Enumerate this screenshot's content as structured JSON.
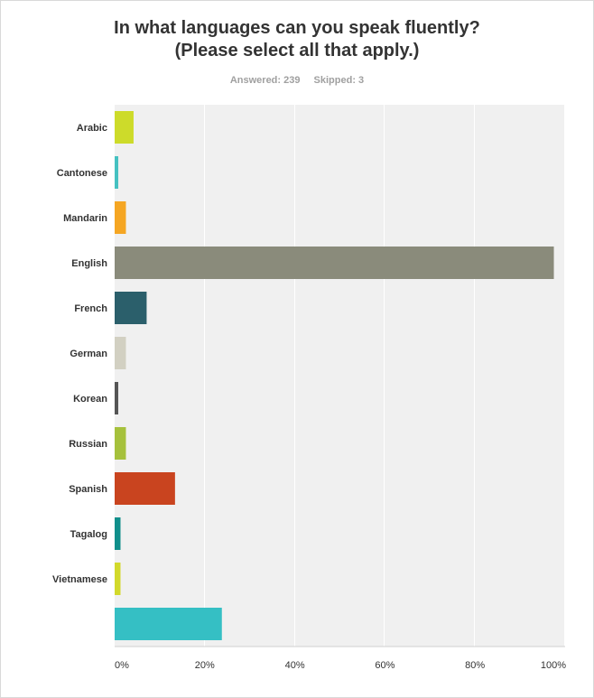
{
  "title_lines": [
    "In what languages can you speak fluently?",
    "(Please select all that apply.)"
  ],
  "answered_label": "Answered: 239",
  "skipped_label": "Skipped: 3",
  "chart_data": {
    "type": "bar",
    "orientation": "horizontal",
    "categories": [
      "Arabic",
      "Cantonese",
      "Mandarin",
      "English",
      "French",
      "German",
      "Korean",
      "Russian",
      "Spanish",
      "Tagalog",
      "Vietnamese",
      ""
    ],
    "values": [
      4.2,
      0.8,
      2.5,
      97.5,
      7.1,
      2.5,
      0.8,
      2.5,
      13.4,
      1.3,
      1.3,
      23.8
    ],
    "colors": [
      "#cddb2a",
      "#45c1c1",
      "#f5a623",
      "#8a8b7b",
      "#2b5f6b",
      "#d2d0c2",
      "#555555",
      "#a6c13c",
      "#c9441f",
      "#108f8b",
      "#d2d92b",
      "#35bfc4"
    ],
    "xlim": [
      0,
      100
    ],
    "x_ticks": [
      "0%",
      "20%",
      "40%",
      "60%",
      "80%",
      "100%"
    ],
    "x_tick_values": [
      0,
      20,
      40,
      60,
      80,
      100
    ],
    "grid": true
  }
}
